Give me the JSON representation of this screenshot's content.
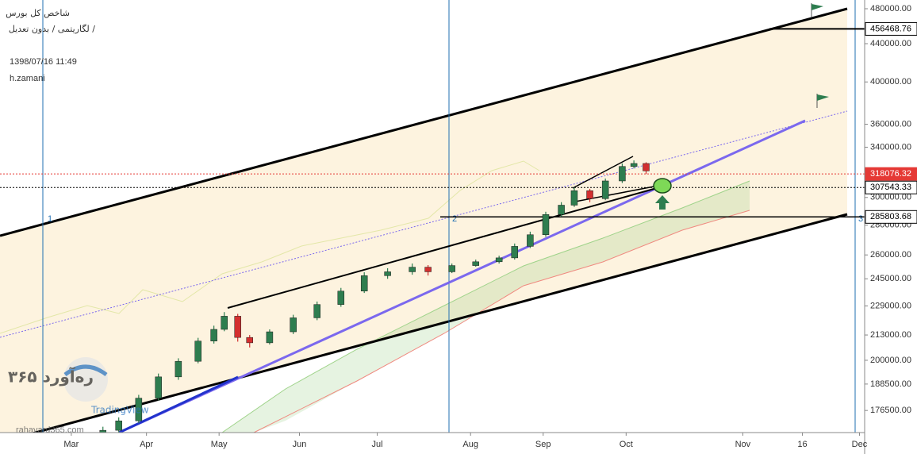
{
  "chart_data": {
    "type": "candlestick",
    "title": "شاخص کل بورس",
    "subtitle": "لگاریتمی / بدون تعدیل /",
    "timestamp": "1398/07/16 11:49",
    "author": "h.zamani",
    "watermark": {
      "brand": "ره‌آورد ۳۶۵",
      "site": "rahavard365.com",
      "platform": "TradingView"
    },
    "marker_labels": [
      "1",
      "2",
      "3"
    ],
    "log_scale": true,
    "up_color": "#2e7d4f",
    "down_color": "#d32f2f",
    "x": [
      12.2,
      18.3,
      26,
      33.6,
      41.3,
      48.9,
      55,
      59,
      64.2,
      68.8,
      76.5,
      85.6,
      94.8,
      104,
      113,
      122,
      131.5,
      137.6,
      146.8,
      156,
      165,
      171,
      177,
      183,
      189,
      194,
      200,
      206,
      212.5,
      217,
      221.7
    ],
    "open": [
      165000,
      168000,
      172000,
      182000,
      191900,
      199500,
      209800,
      216000,
      223200,
      211700,
      208900,
      214700,
      222300,
      229800,
      237600,
      246900,
      249300,
      252200,
      249300,
      253200,
      255600,
      258100,
      265600,
      273400,
      287500,
      294300,
      305100,
      299100,
      312600,
      324100,
      326500
    ],
    "high": [
      169500,
      173500,
      183500,
      193500,
      201000,
      211500,
      218000,
      225500,
      224500,
      213000,
      216000,
      224000,
      231500,
      239500,
      249000,
      251500,
      254500,
      253500,
      254500,
      257000,
      259500,
      267500,
      275500,
      289500,
      296500,
      307500,
      306500,
      314500,
      326500,
      329000,
      327500
    ],
    "low": [
      163500,
      167000,
      171000,
      181000,
      190500,
      198500,
      208500,
      215000,
      209500,
      206500,
      208000,
      213500,
      221000,
      228500,
      236500,
      245000,
      247500,
      247000,
      248500,
      252500,
      254500,
      257000,
      264500,
      272000,
      286000,
      293000,
      296500,
      298000,
      311000,
      322500,
      318000
    ],
    "close": [
      168000,
      172000,
      182000,
      191900,
      199500,
      209800,
      216000,
      223200,
      211700,
      208900,
      214700,
      222300,
      229800,
      237600,
      246900,
      249300,
      252200,
      249300,
      253200,
      255600,
      258100,
      265600,
      273400,
      287500,
      294300,
      305100,
      299100,
      312600,
      324100,
      326500,
      320500
    ],
    "xlim": [
      -27.5,
      306
    ],
    "xticks": [
      {
        "value": 0,
        "label": "Mar"
      },
      {
        "value": 29,
        "label": "Apr"
      },
      {
        "value": 57,
        "label": "May"
      },
      {
        "value": 88,
        "label": "Jun"
      },
      {
        "value": 118,
        "label": "Jul"
      },
      {
        "value": 154,
        "label": "Aug"
      },
      {
        "value": 182,
        "label": "Sep"
      },
      {
        "value": 214,
        "label": "Oct"
      },
      {
        "value": 259,
        "label": "Nov"
      },
      {
        "value": 282,
        "label": "16"
      },
      {
        "value": 304,
        "label": "Dec"
      }
    ],
    "ylim": [
      167050,
      490550
    ],
    "yticks": [
      {
        "value": 176500,
        "label": "176500.00"
      },
      {
        "value": 188500,
        "label": "188500.00"
      },
      {
        "value": 200000,
        "label": "200000.00"
      },
      {
        "value": 213000,
        "label": "213000.00"
      },
      {
        "value": 229000,
        "label": "229000.00"
      },
      {
        "value": 245000,
        "label": "245000.00"
      },
      {
        "value": 260000,
        "label": "260000.00"
      },
      {
        "value": 280000,
        "label": "280000.00"
      },
      {
        "value": 300000,
        "label": "300000.00"
      },
      {
        "value": 340000,
        "label": "340000.00"
      },
      {
        "value": 360000,
        "label": "360000.00"
      },
      {
        "value": 400000,
        "label": "400000.00"
      },
      {
        "value": 440000,
        "label": "440000.00"
      },
      {
        "value": 480000,
        "label": "480000.00"
      }
    ],
    "price_lines": [
      {
        "value": 456468.76,
        "color": "#000000"
      },
      {
        "value": 318076.32,
        "color": "#e53935"
      },
      {
        "value": 307543.33,
        "color": "#000000"
      },
      {
        "value": 285803.68,
        "color": "#000000"
      }
    ]
  }
}
